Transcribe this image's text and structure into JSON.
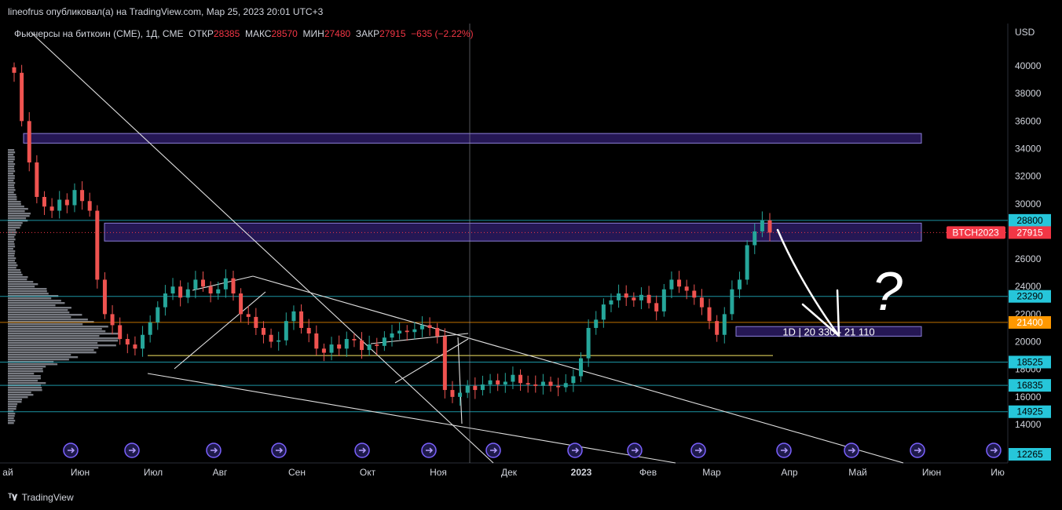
{
  "header": {
    "author_line": "lineofrus опубликовал(а) на TradingView.com, Мар 25, 2023 20:01 UTC+3"
  },
  "legend": {
    "symbol": "Фьючерсы на биткоин (CME), 1Д, CME",
    "open_label": "ОТКР",
    "open_value": "28385",
    "high_label": "МАКС",
    "high_value": "28570",
    "low_label": "МИН",
    "low_value": "27480",
    "close_label": "ЗАКР",
    "close_value": "27915",
    "change": "−635 (−2.22%)"
  },
  "footer": {
    "brand": "TradingView"
  },
  "colors": {
    "up": "#26a69a",
    "down": "#ef5350",
    "zone": "#2a1a5e",
    "zone_border": "#9b8cf0",
    "cyan": "#26c6da",
    "orange": "#ff9800",
    "yellow": "#f5e663",
    "label_red": "#f23645"
  },
  "chart_data": {
    "type": "candlestick",
    "currency": "USD",
    "y_ticks": [
      "40000",
      "38000",
      "36000",
      "34000",
      "32000",
      "30000",
      "26000",
      "24000",
      "22000",
      "20000",
      "18000",
      "16000",
      "14000"
    ],
    "x_labels": [
      "ай",
      "Июн",
      "Июл",
      "Авг",
      "Сен",
      "Окт",
      "Ноя",
      "Дек",
      "2023",
      "Фев",
      "Мар",
      "Апр",
      "Май",
      "Июн",
      "Ию"
    ],
    "price_labels": [
      {
        "value": "28800",
        "kind": "cyan"
      },
      {
        "value": "BTCH2023",
        "kind": "symbol"
      },
      {
        "value": "27915",
        "kind": "last"
      },
      {
        "value": "23290",
        "kind": "cyan"
      },
      {
        "value": "21400",
        "kind": "orange"
      },
      {
        "value": "18525",
        "kind": "cyan"
      },
      {
        "value": "16835",
        "kind": "cyan"
      },
      {
        "value": "14925",
        "kind": "cyan"
      },
      {
        "value": "12265",
        "kind": "cyan"
      }
    ],
    "horizontal_levels": [
      28800,
      23290,
      21400,
      18525,
      16835,
      14925
    ],
    "zones": [
      {
        "from": 34400,
        "to": 35100,
        "label": ""
      },
      {
        "from": 27300,
        "to": 28600,
        "label": ""
      },
      {
        "from": 20400,
        "to": 21100,
        "label": "1D | 20 330 - 21 110"
      }
    ],
    "annotation_text": "?",
    "candles_close_approx": [
      39500,
      36000,
      33000,
      30500,
      29800,
      29500,
      30300,
      29900,
      31000,
      30200,
      29500,
      24500,
      22000,
      21200,
      20200,
      19800,
      19500,
      20500,
      21400,
      22500,
      23500,
      24000,
      23200,
      23800,
      24500,
      24000,
      23500,
      23800,
      24600,
      23500,
      22000,
      21800,
      21000,
      20500,
      20000,
      20100,
      21500,
      22200,
      21000,
      20600,
      19500,
      19200,
      19800,
      19500,
      20200,
      20100,
      19400,
      19800,
      19700,
      20300,
      20600,
      20800,
      20700,
      20900,
      21200,
      21000,
      20400,
      16500,
      16000,
      16300,
      16800,
      16500,
      16900,
      17200,
      16900,
      17100,
      17600,
      17000,
      16900,
      16800,
      17100,
      16800,
      16700,
      17000,
      17500,
      18800,
      21000,
      21600,
      22700,
      23000,
      23500,
      23200,
      23000,
      23400,
      22800,
      22200,
      23800,
      24500,
      24000,
      23700,
      23200,
      22500,
      21500,
      20500,
      22000,
      23800,
      24500,
      27000,
      28000,
      28800,
      27915
    ]
  }
}
